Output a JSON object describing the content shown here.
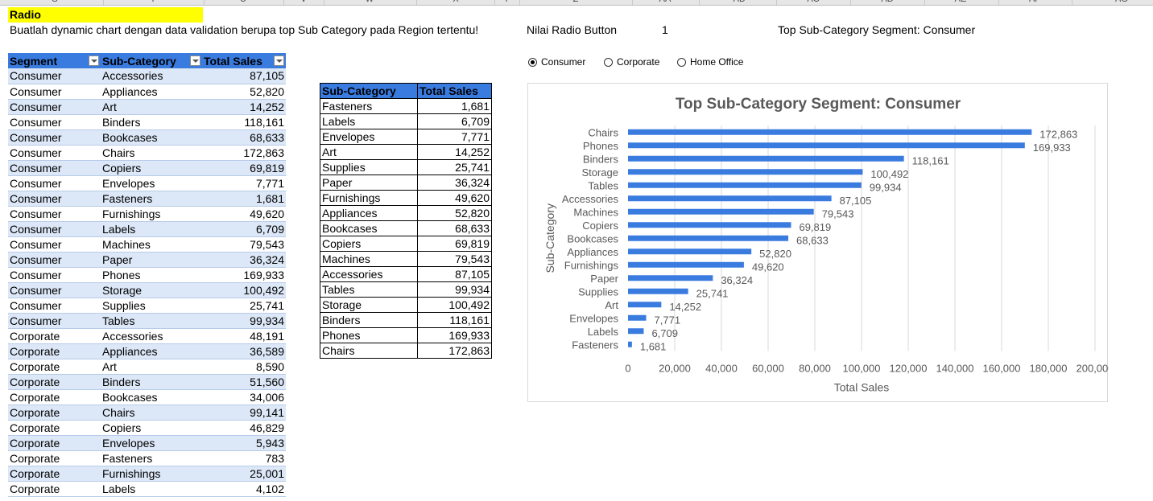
{
  "column_headers": [
    "S",
    "T",
    "U",
    "V",
    "W",
    "X",
    "Y",
    "Z",
    "AA",
    "AB",
    "AC",
    "AD",
    "AE",
    "AF",
    "AG"
  ],
  "radio_title": "Radio",
  "instruction": "Buatlah dynamic chart dengan data validation berupa top Sub Category pada Region tertentu!",
  "radio_value_label": "Nilai Radio Button",
  "radio_value": "1",
  "chart_title_cell": "Top Sub-Category Segment: Consumer",
  "radio_options": [
    {
      "label": "Consumer",
      "selected": true
    },
    {
      "label": "Corporate",
      "selected": false
    },
    {
      "label": "Home Office",
      "selected": false
    }
  ],
  "table1": {
    "headers": [
      "Segment",
      "Sub-Category",
      "Total Sales"
    ],
    "rows": [
      [
        "Consumer",
        "Accessories",
        "87,105"
      ],
      [
        "Consumer",
        "Appliances",
        "52,820"
      ],
      [
        "Consumer",
        "Art",
        "14,252"
      ],
      [
        "Consumer",
        "Binders",
        "118,161"
      ],
      [
        "Consumer",
        "Bookcases",
        "68,633"
      ],
      [
        "Consumer",
        "Chairs",
        "172,863"
      ],
      [
        "Consumer",
        "Copiers",
        "69,819"
      ],
      [
        "Consumer",
        "Envelopes",
        "7,771"
      ],
      [
        "Consumer",
        "Fasteners",
        "1,681"
      ],
      [
        "Consumer",
        "Furnishings",
        "49,620"
      ],
      [
        "Consumer",
        "Labels",
        "6,709"
      ],
      [
        "Consumer",
        "Machines",
        "79,543"
      ],
      [
        "Consumer",
        "Paper",
        "36,324"
      ],
      [
        "Consumer",
        "Phones",
        "169,933"
      ],
      [
        "Consumer",
        "Storage",
        "100,492"
      ],
      [
        "Consumer",
        "Supplies",
        "25,741"
      ],
      [
        "Consumer",
        "Tables",
        "99,934"
      ],
      [
        "Corporate",
        "Accessories",
        "48,191"
      ],
      [
        "Corporate",
        "Appliances",
        "36,589"
      ],
      [
        "Corporate",
        "Art",
        "8,590"
      ],
      [
        "Corporate",
        "Binders",
        "51,560"
      ],
      [
        "Corporate",
        "Bookcases",
        "34,006"
      ],
      [
        "Corporate",
        "Chairs",
        "99,141"
      ],
      [
        "Corporate",
        "Copiers",
        "46,829"
      ],
      [
        "Corporate",
        "Envelopes",
        "5,943"
      ],
      [
        "Corporate",
        "Fasteners",
        "783"
      ],
      [
        "Corporate",
        "Furnishings",
        "25,001"
      ],
      [
        "Corporate",
        "Labels",
        "4,102"
      ]
    ]
  },
  "table2": {
    "headers": [
      "Sub-Category",
      "Total Sales"
    ],
    "rows": [
      [
        "Fasteners",
        "1,681"
      ],
      [
        "Labels",
        "6,709"
      ],
      [
        "Envelopes",
        "7,771"
      ],
      [
        "Art",
        "14,252"
      ],
      [
        "Supplies",
        "25,741"
      ],
      [
        "Paper",
        "36,324"
      ],
      [
        "Furnishings",
        "49,620"
      ],
      [
        "Appliances",
        "52,820"
      ],
      [
        "Bookcases",
        "68,633"
      ],
      [
        "Copiers",
        "69,819"
      ],
      [
        "Machines",
        "79,543"
      ],
      [
        "Accessories",
        "87,105"
      ],
      [
        "Tables",
        "99,934"
      ],
      [
        "Storage",
        "100,492"
      ],
      [
        "Binders",
        "118,161"
      ],
      [
        "Phones",
        "169,933"
      ],
      [
        "Chairs",
        "172,863"
      ]
    ]
  },
  "chart_data": {
    "type": "bar",
    "orientation": "horizontal",
    "title": "Top Sub-Category Segment: Consumer",
    "xlabel": "Total Sales",
    "ylabel": "Sub-Category",
    "xlim": [
      0,
      200000
    ],
    "xticks": [
      "0",
      "20,000",
      "40,000",
      "60,000",
      "80,000",
      "100,000",
      "120,000",
      "140,000",
      "160,000",
      "180,000",
      "200,000"
    ],
    "categories": [
      "Chairs",
      "Phones",
      "Binders",
      "Storage",
      "Tables",
      "Accessories",
      "Machines",
      "Copiers",
      "Bookcases",
      "Appliances",
      "Furnishings",
      "Paper",
      "Supplies",
      "Art",
      "Envelopes",
      "Labels",
      "Fasteners"
    ],
    "values": [
      172863,
      169933,
      118161,
      100492,
      99934,
      87105,
      79543,
      69819,
      68633,
      52820,
      49620,
      36324,
      25741,
      14252,
      7771,
      6709,
      1681
    ],
    "value_labels": [
      "172,863",
      "169,933",
      "118,161",
      "100,492",
      "99,934",
      "87,105",
      "79,543",
      "69,819",
      "68,633",
      "52,820",
      "49,620",
      "36,324",
      "25,741",
      "14,252",
      "7,771",
      "6,709",
      "1,681"
    ],
    "bar_color": "#3a7be0",
    "grid": true,
    "legend": "none"
  }
}
